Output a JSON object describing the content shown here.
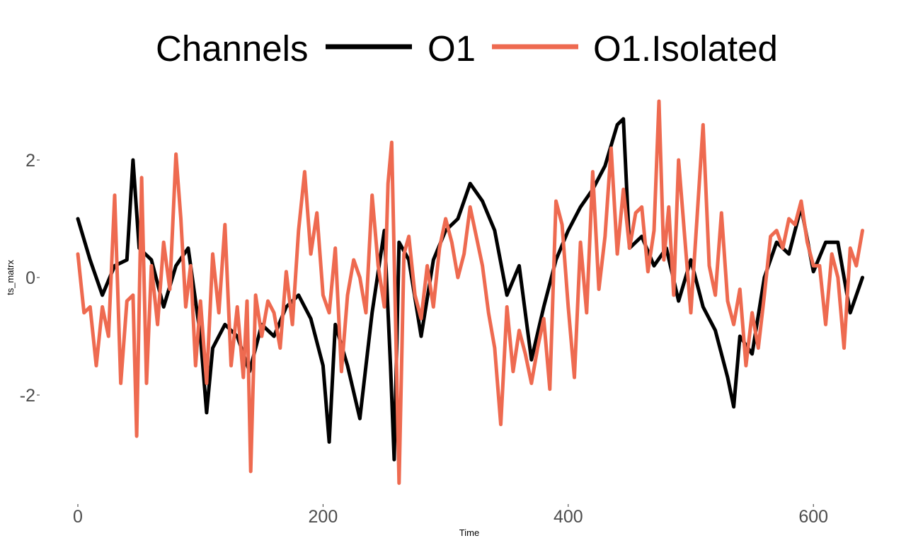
{
  "chart_data": {
    "type": "line",
    "title": "",
    "xlabel": "Time",
    "ylabel": "ts_matrx",
    "xlim": [
      0,
      640
    ],
    "ylim": [
      -3.6,
      3.1
    ],
    "x_ticks": [
      0,
      200,
      400,
      600
    ],
    "y_ticks": [
      -2,
      0,
      2
    ],
    "grid": false,
    "legend": {
      "title": "Channels",
      "position": "top",
      "entries": [
        "O1",
        "O1.Isolated"
      ]
    },
    "series": [
      {
        "name": "O1",
        "color": "#000000",
        "x": [
          0,
          10,
          20,
          30,
          40,
          45,
          50,
          60,
          70,
          80,
          90,
          100,
          105,
          110,
          120,
          130,
          140,
          150,
          160,
          170,
          180,
          190,
          200,
          205,
          210,
          220,
          230,
          240,
          250,
          255,
          258,
          262,
          270,
          280,
          290,
          300,
          310,
          320,
          330,
          340,
          350,
          360,
          370,
          380,
          390,
          400,
          410,
          420,
          430,
          440,
          445,
          450,
          460,
          470,
          480,
          490,
          500,
          510,
          520,
          530,
          535,
          540,
          550,
          560,
          570,
          580,
          590,
          600,
          610,
          620,
          630,
          640
        ],
        "y": [
          1.0,
          0.3,
          -0.3,
          0.2,
          0.3,
          2.0,
          0.5,
          0.3,
          -0.5,
          0.2,
          0.5,
          -1.0,
          -2.3,
          -1.2,
          -0.8,
          -1.0,
          -1.6,
          -0.8,
          -1.0,
          -0.5,
          -0.3,
          -0.7,
          -1.5,
          -2.8,
          -0.8,
          -1.5,
          -2.4,
          -0.6,
          0.8,
          -1.5,
          -3.1,
          0.6,
          0.3,
          -1.0,
          0.3,
          0.8,
          1.0,
          1.6,
          1.3,
          0.8,
          -0.3,
          0.2,
          -1.4,
          -0.5,
          0.3,
          0.8,
          1.2,
          1.5,
          1.9,
          2.6,
          2.7,
          0.5,
          0.7,
          0.2,
          0.5,
          -0.4,
          0.3,
          -0.5,
          -0.9,
          -1.7,
          -2.2,
          -1.0,
          -1.3,
          0.0,
          0.6,
          0.4,
          1.2,
          0.1,
          0.6,
          0.6,
          -0.6,
          0.0
        ]
      },
      {
        "name": "O1.Isolated",
        "color": "#EE6A50",
        "x": [
          0,
          5,
          10,
          15,
          20,
          25,
          30,
          35,
          40,
          45,
          48,
          52,
          56,
          60,
          65,
          70,
          75,
          80,
          84,
          88,
          92,
          96,
          100,
          105,
          110,
          115,
          120,
          125,
          130,
          135,
          138,
          141,
          145,
          150,
          155,
          160,
          165,
          170,
          175,
          180,
          185,
          190,
          195,
          200,
          205,
          210,
          215,
          220,
          225,
          230,
          235,
          240,
          245,
          250,
          253,
          256,
          259,
          262,
          266,
          270,
          275,
          280,
          285,
          290,
          295,
          300,
          305,
          310,
          315,
          320,
          325,
          330,
          335,
          340,
          345,
          350,
          355,
          360,
          365,
          370,
          375,
          380,
          385,
          390,
          395,
          400,
          405,
          410,
          415,
          420,
          425,
          430,
          435,
          440,
          445,
          450,
          455,
          460,
          465,
          470,
          474,
          478,
          482,
          486,
          490,
          495,
          500,
          505,
          510,
          515,
          520,
          525,
          530,
          535,
          540,
          545,
          550,
          555,
          560,
          565,
          570,
          575,
          580,
          585,
          590,
          595,
          600,
          605,
          610,
          615,
          620,
          625,
          630,
          635,
          640
        ],
        "y": [
          0.4,
          -0.6,
          -0.5,
          -1.5,
          -0.5,
          -1.0,
          1.4,
          -1.8,
          -0.4,
          -0.3,
          -2.7,
          1.7,
          -1.8,
          0.2,
          -0.8,
          0.6,
          -0.2,
          2.1,
          1.0,
          -0.5,
          0.2,
          -1.5,
          -0.4,
          -1.8,
          0.4,
          -0.6,
          0.9,
          -1.5,
          -0.5,
          -1.7,
          -0.4,
          -3.3,
          -0.3,
          -1.0,
          -0.4,
          -0.6,
          -1.2,
          0.1,
          -0.8,
          0.8,
          1.8,
          0.4,
          1.1,
          -0.3,
          -0.6,
          0.5,
          -1.6,
          -0.3,
          0.3,
          0.0,
          -0.6,
          1.4,
          0.2,
          -0.5,
          1.6,
          2.3,
          -0.6,
          -3.5,
          0.4,
          0.7,
          -0.3,
          -0.7,
          0.2,
          -0.5,
          0.5,
          1.0,
          0.6,
          0.0,
          0.4,
          1.2,
          0.7,
          0.2,
          -0.6,
          -1.2,
          -2.5,
          -0.5,
          -1.6,
          -0.9,
          -1.3,
          -1.8,
          -1.2,
          -0.7,
          -1.9,
          1.3,
          0.9,
          -0.5,
          -1.7,
          0.6,
          -0.6,
          1.8,
          -0.2,
          0.7,
          2.2,
          0.4,
          1.5,
          0.5,
          1.1,
          1.2,
          0.1,
          0.8,
          3.0,
          0.3,
          1.2,
          -0.3,
          2.0,
          0.7,
          -0.6,
          1.0,
          2.6,
          0.2,
          -0.3,
          1.1,
          -0.4,
          -0.8,
          -0.2,
          -1.5,
          -0.6,
          -1.2,
          -0.3,
          0.7,
          0.8,
          0.5,
          1.0,
          0.9,
          1.3,
          0.6,
          0.2,
          0.2,
          -0.8,
          0.4,
          0.0,
          -1.2,
          0.5,
          0.2,
          0.8
        ]
      }
    ]
  }
}
